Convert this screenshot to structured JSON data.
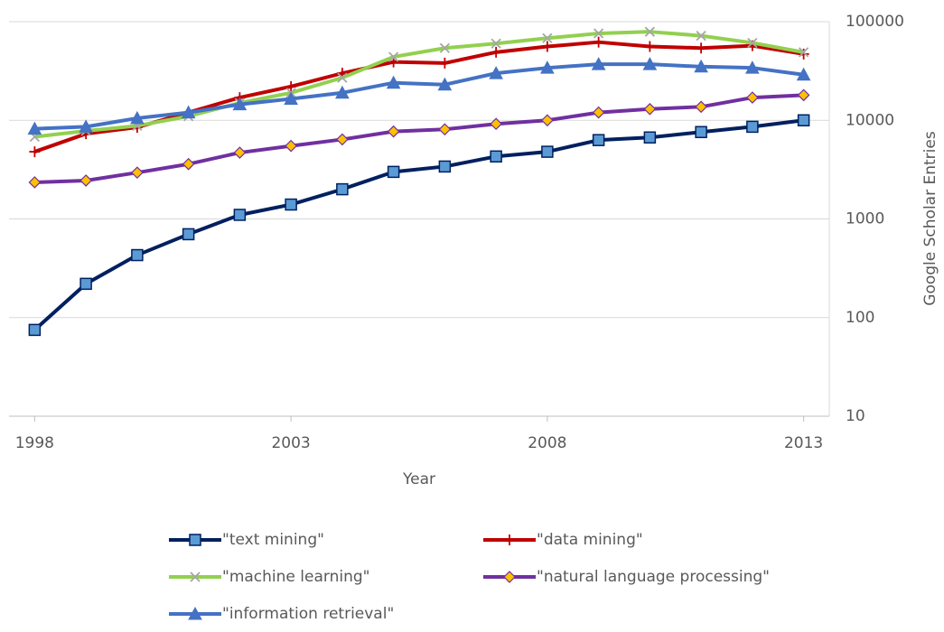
{
  "chart_data": {
    "type": "line",
    "x_label": "Year",
    "y_label": "Google Scholar Entries",
    "x": [
      1998,
      1999,
      2000,
      2001,
      2002,
      2003,
      2004,
      2005,
      2006,
      2007,
      2008,
      2009,
      2010,
      2011,
      2012,
      2013
    ],
    "xlim": [
      1997.5,
      2013.5
    ],
    "xticks": [
      1998,
      2003,
      2008,
      2013
    ],
    "ylim": [
      10,
      100000
    ],
    "yticks": [
      10,
      100,
      1000,
      10000,
      100000
    ],
    "log_scale": true,
    "grid": true,
    "series": [
      {
        "name": "\"text mining\"",
        "color": "#002060",
        "marker": "square",
        "marker_color": "#5b9bd5",
        "values": [
          75,
          220,
          430,
          700,
          1100,
          1400,
          2000,
          3000,
          3400,
          4300,
          4800,
          6300,
          6700,
          7600,
          8600,
          10000
        ]
      },
      {
        "name": "\"data mining\"",
        "color": "#c00000",
        "marker": "plus",
        "marker_color": "#c00000",
        "values": [
          4800,
          7300,
          8500,
          12000,
          17000,
          22000,
          30000,
          39000,
          38000,
          49000,
          56000,
          62000,
          56000,
          54000,
          57000,
          47000
        ]
      },
      {
        "name": "\"machine learning\"",
        "color": "#92d050",
        "marker": "cross",
        "marker_color": "#a6a6a6",
        "values": [
          6800,
          7800,
          8800,
          11000,
          15000,
          19000,
          27000,
          44000,
          54000,
          60000,
          68000,
          76000,
          79000,
          72000,
          61000,
          49000
        ]
      },
      {
        "name": "\"natural language processing\"",
        "color": "#7030a0",
        "marker": "diamond",
        "marker_color": "#ffc000",
        "values": [
          2350,
          2450,
          2950,
          3600,
          4700,
          5500,
          6400,
          7700,
          8100,
          9200,
          10000,
          12000,
          13000,
          13700,
          17000,
          18000
        ]
      },
      {
        "name": "\"information retrieval\"",
        "color": "#4472c4",
        "marker": "triangle",
        "marker_color": "#4472c4",
        "values": [
          8200,
          8600,
          10500,
          12000,
          14500,
          16500,
          19000,
          24000,
          23000,
          30000,
          34000,
          37000,
          37000,
          35000,
          34000,
          29000
        ]
      }
    ]
  }
}
